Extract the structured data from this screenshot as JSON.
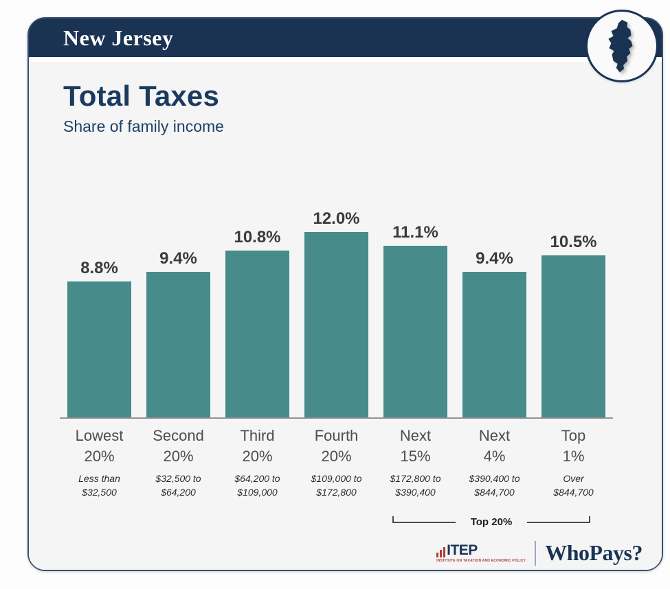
{
  "header": {
    "state": "New Jersey"
  },
  "title": {
    "heading": "Total Taxes",
    "subtitle": "Share of family income"
  },
  "chart_data": {
    "type": "bar",
    "title": "Total Taxes",
    "subtitle": "Share of family income",
    "ylabel": "Share of family income (%)",
    "ylim": [
      0,
      12.5
    ],
    "grid": false,
    "legend": false,
    "bar_color": "#478b8b",
    "categories": [
      "Lowest 20%",
      "Second 20%",
      "Third 20%",
      "Fourth 20%",
      "Next 15%",
      "Next 4%",
      "Top 1%"
    ],
    "category_lines": [
      [
        "Lowest",
        "20%"
      ],
      [
        "Second",
        "20%"
      ],
      [
        "Third",
        "20%"
      ],
      [
        "Fourth",
        "20%"
      ],
      [
        "Next",
        "15%"
      ],
      [
        "Next",
        "4%"
      ],
      [
        "Top",
        "1%"
      ]
    ],
    "income_ranges": [
      [
        "Less than",
        "$32,500"
      ],
      [
        "$32,500 to",
        "$64,200"
      ],
      [
        "$64,200 to",
        "$109,000"
      ],
      [
        "$109,000 to",
        "$172,800"
      ],
      [
        "$172,800 to",
        "$390,400"
      ],
      [
        "$390,400 to",
        "$844,700"
      ],
      [
        "Over",
        "$844,700"
      ]
    ],
    "values": [
      8.8,
      9.4,
      10.8,
      12.0,
      11.1,
      9.4,
      10.5
    ],
    "value_labels": [
      "8.8%",
      "9.4%",
      "10.8%",
      "12.0%",
      "11.1%",
      "9.4%",
      "10.5%"
    ],
    "bracket": {
      "label": "Top 20%",
      "start_index": 4,
      "end_index": 6
    }
  },
  "footer": {
    "itep_name": "ITEP",
    "itep_tagline": "INSTITUTE ON TAXATION AND ECONOMIC POLICY",
    "whopays": "WhoPays?"
  },
  "colors": {
    "navy": "#1a3353",
    "teal": "#478b8b",
    "panel_bg": "#f5f5f6",
    "itep_red": "#b23b35"
  }
}
